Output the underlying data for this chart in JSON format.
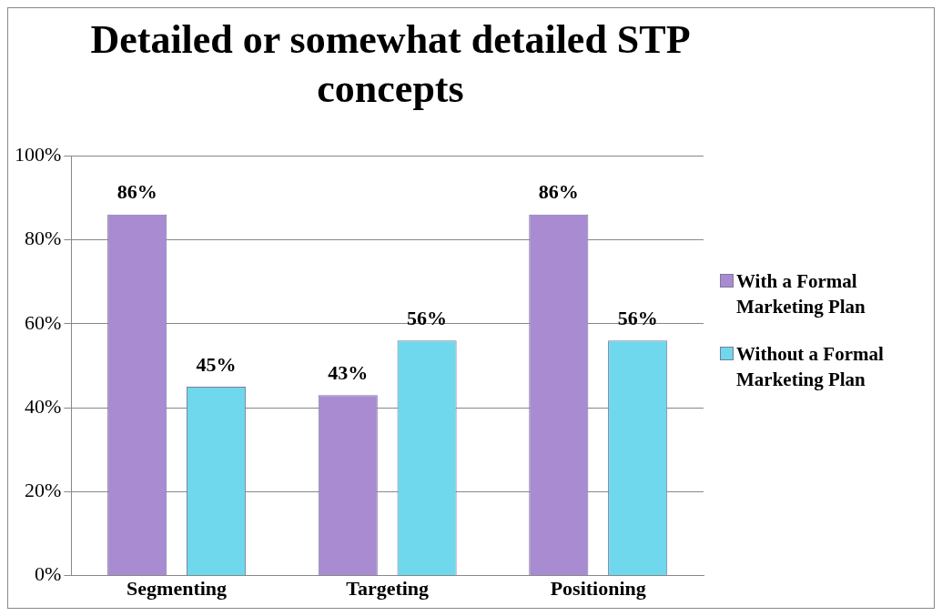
{
  "chart_data": {
    "type": "bar",
    "title": "Detailed or somewhat detailed STP concepts",
    "categories": [
      "Segmenting",
      "Targeting",
      "Positioning"
    ],
    "series": [
      {
        "name": "With a Formal Marketing Plan",
        "color": "#a98bd2",
        "values": [
          86,
          43,
          86
        ],
        "value_labels": [
          "86%",
          "43%",
          "86%"
        ]
      },
      {
        "name": "Without a Formal Marketing Plan",
        "color": "#6fd8ec",
        "values": [
          45,
          56,
          56
        ],
        "value_labels": [
          "45%",
          "56%",
          "56%"
        ]
      }
    ],
    "ylim": [
      0,
      100
    ],
    "yticks": [
      {
        "value": 0,
        "label": "0%"
      },
      {
        "value": 20,
        "label": "20%"
      },
      {
        "value": 40,
        "label": "40%"
      },
      {
        "value": 60,
        "label": "60%"
      },
      {
        "value": 80,
        "label": "80%"
      },
      {
        "value": 100,
        "label": "100%"
      }
    ],
    "grid": "y",
    "legend": "right"
  }
}
